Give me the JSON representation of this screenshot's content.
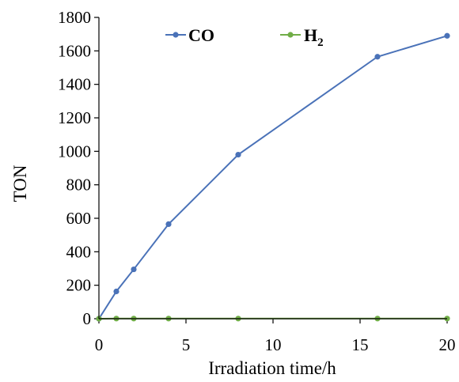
{
  "chart_data": {
    "type": "line",
    "title": "",
    "xlabel": "Irradiation time/h",
    "ylabel": "TON",
    "xlim": [
      0,
      20
    ],
    "ylim": [
      0,
      1800
    ],
    "xticks": [
      0,
      5,
      10,
      15,
      20
    ],
    "yticks": [
      0,
      200,
      400,
      600,
      800,
      1000,
      1200,
      1400,
      1600,
      1800
    ],
    "grid": false,
    "legend_position": "top",
    "series": [
      {
        "name": "CO",
        "color": "#4a72b8",
        "x": [
          0,
          1,
          2,
          4,
          8,
          16,
          20
        ],
        "y": [
          0,
          163,
          295,
          565,
          980,
          1565,
          1690
        ]
      },
      {
        "name": "H",
        "name_subscript": "2",
        "color": "#70ad47",
        "x": [
          0,
          1,
          2,
          4,
          8,
          16,
          20
        ],
        "y": [
          0,
          1,
          1,
          1,
          1,
          1,
          1
        ]
      }
    ]
  }
}
